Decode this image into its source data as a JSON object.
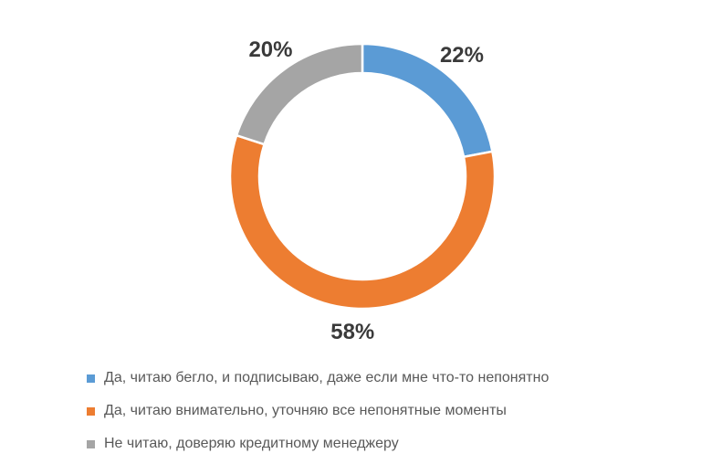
{
  "chart_data": {
    "type": "pie",
    "subtype": "donut",
    "title": "",
    "categories": [
      "Да, читаю бегло, и подписываю, даже если мне что-то непонятно",
      "Да, читаю внимательно, уточняю все непонятные моменты",
      "Не читаю, доверяю кредитному менеджеру"
    ],
    "values": [
      22,
      58,
      20
    ],
    "data_labels": [
      "22%",
      "58%",
      "20%"
    ],
    "colors": [
      "#5B9BD5",
      "#ED7D31",
      "#A5A5A5"
    ],
    "start_angle_deg": 0,
    "direction": "clockwise",
    "donut_hole_ratio": 0.78,
    "slice_separator_color": "#FFFFFF",
    "data_label_color": "#3A3A3A",
    "legend_position": "bottom-left",
    "legend_text_color": "#595959",
    "background_color": "#FFFFFF"
  }
}
